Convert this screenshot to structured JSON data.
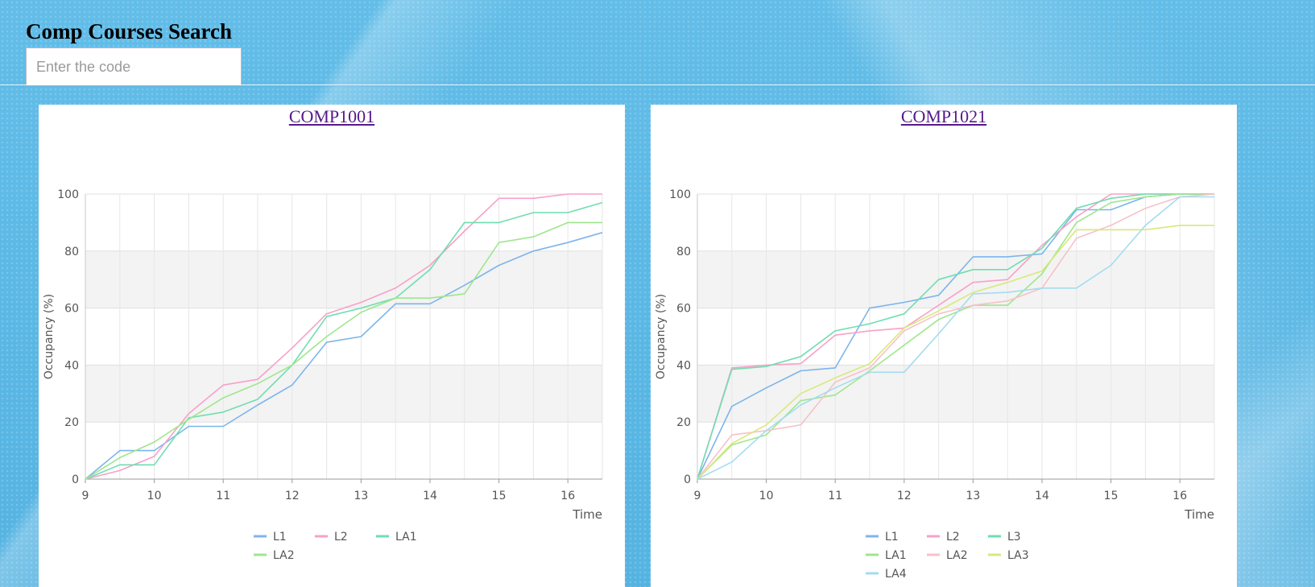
{
  "page": {
    "title": "Comp Courses Search",
    "search_placeholder": "Enter the code"
  },
  "chart_data": [
    {
      "type": "line",
      "title": "COMP1001",
      "xlabel": "Time",
      "ylabel": "Occupancy (%)",
      "x": [
        9,
        9.5,
        10,
        10.5,
        11,
        11.5,
        12,
        12.5,
        13,
        13.5,
        14,
        14.5,
        15,
        15.5,
        16,
        16.5
      ],
      "xlim": [
        9,
        16.5
      ],
      "ylim": [
        0,
        100
      ],
      "xticks": [
        9,
        10,
        11,
        12,
        13,
        14,
        15,
        16
      ],
      "yticks": [
        0,
        20,
        40,
        60,
        80,
        100
      ],
      "grid": true,
      "legend": "bottom",
      "series": [
        {
          "name": "L1",
          "color": "#7cb5ec",
          "values": [
            0,
            10,
            10,
            18.5,
            18.5,
            26,
            33,
            48,
            50,
            61.5,
            61.5,
            68,
            75,
            80,
            83,
            86.5
          ]
        },
        {
          "name": "L2",
          "color": "#f7a1c8",
          "values": [
            0,
            3,
            8,
            23,
            33,
            35,
            46,
            58,
            62,
            67,
            75,
            87,
            98.5,
            98.5,
            100,
            100
          ]
        },
        {
          "name": "LA1",
          "color": "#6fdeb0",
          "values": [
            0,
            5,
            5,
            21.5,
            23.5,
            28,
            40,
            57,
            60,
            63.5,
            73.5,
            90,
            90,
            93.5,
            93.5,
            97
          ]
        },
        {
          "name": "LA2",
          "color": "#9fe68c",
          "values": [
            0,
            7.5,
            13,
            21,
            28.5,
            33.5,
            40,
            50,
            58.5,
            63.5,
            63.5,
            65,
            83,
            85,
            90,
            90
          ]
        }
      ]
    },
    {
      "type": "line",
      "title": "COMP1021",
      "xlabel": "Time",
      "ylabel": "Occupancy (%)",
      "x": [
        9,
        9.5,
        10,
        10.5,
        11,
        11.5,
        12,
        12.5,
        13,
        13.5,
        14,
        14.5,
        15,
        15.5,
        16,
        16.5
      ],
      "xlim": [
        9,
        16.5
      ],
      "ylim": [
        0,
        100
      ],
      "xticks": [
        9,
        10,
        11,
        12,
        13,
        14,
        15,
        16
      ],
      "yticks": [
        0,
        20,
        40,
        60,
        80,
        100
      ],
      "grid": true,
      "legend": "bottom",
      "series": [
        {
          "name": "L1",
          "color": "#7cb5ec",
          "values": [
            0,
            25.5,
            32,
            38,
            39,
            60,
            62,
            64.5,
            78,
            78,
            79,
            94.5,
            94.5,
            99,
            100,
            100
          ]
        },
        {
          "name": "L2",
          "color": "#f7a1c8",
          "values": [
            0,
            39,
            40,
            40.5,
            50.5,
            52,
            53,
            61,
            69,
            70,
            82,
            92,
            100,
            100,
            100,
            100
          ]
        },
        {
          "name": "L3",
          "color": "#6fdeb0",
          "values": [
            0,
            38.5,
            39.5,
            43,
            52,
            54.5,
            58,
            70,
            73.5,
            73.5,
            81,
            95,
            98.5,
            100,
            100,
            100
          ]
        },
        {
          "name": "LA1",
          "color": "#9fe68c",
          "values": [
            0,
            12,
            15.5,
            27.5,
            29.5,
            38,
            47,
            56,
            61,
            61,
            72,
            90,
            97,
            99,
            100,
            100
          ]
        },
        {
          "name": "LA2",
          "color": "#f7c1c8",
          "values": [
            0,
            15.5,
            17,
            19,
            34,
            39,
            52,
            58,
            61,
            62.5,
            67,
            84.5,
            89,
            95,
            99,
            100
          ]
        },
        {
          "name": "LA3",
          "color": "#d9e87b",
          "values": [
            0,
            12.5,
            19,
            30,
            35.5,
            40.5,
            53,
            59,
            65.5,
            69,
            73,
            87.5,
            87.5,
            87.5,
            89,
            89
          ]
        },
        {
          "name": "LA4",
          "color": "#a3dcf0",
          "values": [
            0,
            6,
            17,
            26,
            32,
            37.5,
            37.5,
            51,
            65,
            65.5,
            67,
            67,
            75,
            89,
            99,
            99
          ]
        }
      ]
    }
  ]
}
